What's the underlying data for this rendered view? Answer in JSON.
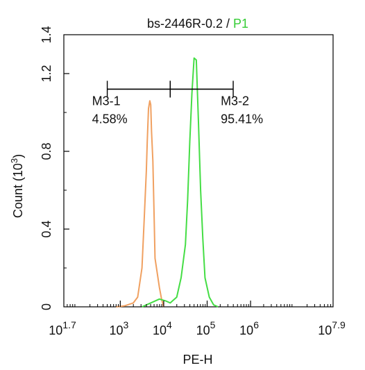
{
  "chart_data": {
    "type": "line",
    "title": {
      "sample": "bs-2446R-0.2",
      "separator": " / ",
      "gate": "P1"
    },
    "xlabel": "PE-H",
    "ylabel": "Count",
    "ylabel_unit": "(10",
    "ylabel_unit_exp": "3",
    "ylabel_unit_close": ")",
    "x_log10_range": [
      1.7,
      7.9
    ],
    "ylim": [
      0,
      1.4
    ],
    "x_ticks": [
      {
        "base": "10",
        "exp": "1.7",
        "v": 1.7
      },
      {
        "base": "10",
        "exp": "3",
        "v": 3
      },
      {
        "base": "10",
        "exp": "4",
        "v": 4
      },
      {
        "base": "10",
        "exp": "5",
        "v": 5
      },
      {
        "base": "10",
        "exp": "6",
        "v": 6
      },
      {
        "base": "10",
        "exp": "7.9",
        "v": 7.9
      }
    ],
    "y_ticks": [
      {
        "label": "0",
        "v": 0
      },
      {
        "label": "0.4",
        "v": 0.4
      },
      {
        "label": "0.8",
        "v": 0.8
      },
      {
        "label": "1.2",
        "v": 1.2
      },
      {
        "label": "1.4",
        "v": 1.4
      }
    ],
    "gates": [
      {
        "name": "M3-1",
        "percent": "4.58%",
        "start": 2.7,
        "end": 4.15,
        "y": 1.12
      },
      {
        "name": "M3-2",
        "percent": "95.41%",
        "start": 4.15,
        "end": 5.6,
        "y": 1.12
      }
    ],
    "series": [
      {
        "color": "#F0A060",
        "x": [
          2.9,
          3.1,
          3.3,
          3.4,
          3.5,
          3.55,
          3.6,
          3.62,
          3.65,
          3.68,
          3.7,
          3.72,
          3.75,
          3.78,
          3.8,
          3.9,
          3.95,
          4.0
        ],
        "y": [
          0.0,
          0.005,
          0.02,
          0.05,
          0.2,
          0.45,
          0.7,
          0.85,
          1.02,
          1.06,
          1.04,
          0.9,
          0.75,
          0.45,
          0.25,
          0.1,
          0.04,
          0.0
        ]
      },
      {
        "color": "#44DD44",
        "x": [
          3.5,
          3.7,
          3.9,
          4.05,
          4.15,
          4.3,
          4.4,
          4.5,
          4.55,
          4.6,
          4.65,
          4.7,
          4.75,
          4.8,
          4.85,
          4.9,
          4.95,
          5.05,
          5.15,
          5.25
        ],
        "y": [
          0.0,
          0.02,
          0.04,
          0.03,
          0.02,
          0.05,
          0.15,
          0.32,
          0.55,
          0.85,
          1.1,
          1.28,
          1.27,
          0.95,
          0.6,
          0.35,
          0.15,
          0.05,
          0.01,
          0.0
        ]
      }
    ]
  }
}
